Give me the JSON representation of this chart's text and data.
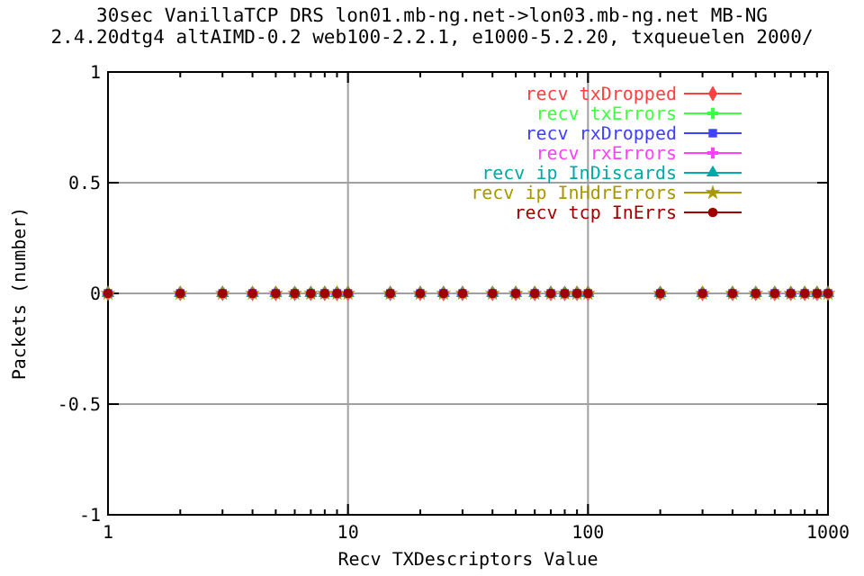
{
  "chart_data": {
    "type": "scatter",
    "title": "30sec VanillaTCP DRS lon01.mb-ng.net->lon03.mb-ng.net MB-NG",
    "subtitle": "2.4.20dtg4 altAIMD-0.2 web100-2.2.1, e1000-5.2.20, txqueuelen 2000/",
    "xlabel": "Recv TXDescriptors Value",
    "ylabel": "Packets (number)",
    "log": "x",
    "grid": true,
    "legend": "top right",
    "xlim": [
      1,
      1000
    ],
    "ylim": [
      -1,
      1
    ],
    "xticks": [
      1,
      {
        "value": 2,
        "label": null
      },
      {
        "value": 3,
        "label": null
      },
      {
        "value": 4,
        "label": null
      },
      {
        "value": 5,
        "label": null
      },
      {
        "value": 6,
        "label": null
      },
      {
        "value": 7,
        "label": null
      },
      {
        "value": 8,
        "label": null
      },
      {
        "value": 9,
        "label": null
      },
      10,
      {
        "value": 20,
        "label": null
      },
      {
        "value": 30,
        "label": null
      },
      {
        "value": 40,
        "label": null
      },
      {
        "value": 50,
        "label": null
      },
      {
        "value": 60,
        "label": null
      },
      {
        "value": 70,
        "label": null
      },
      {
        "value": 80,
        "label": null
      },
      {
        "value": 90,
        "label": null
      },
      100,
      {
        "value": 200,
        "label": null
      },
      {
        "value": 300,
        "label": null
      },
      {
        "value": 400,
        "label": null
      },
      {
        "value": 500,
        "label": null
      },
      {
        "value": 600,
        "label": null
      },
      {
        "value": 700,
        "label": null
      },
      {
        "value": 800,
        "label": null
      },
      {
        "value": 900,
        "label": null
      },
      1000
    ],
    "yticks": [
      -1,
      -0.5,
      0,
      0.5,
      1
    ],
    "x": [
      1,
      2,
      3,
      4,
      5,
      6,
      7,
      8,
      9,
      10,
      15,
      20,
      25,
      30,
      40,
      50,
      60,
      70,
      80,
      90,
      100,
      200,
      300,
      400,
      500,
      600,
      700,
      800,
      900,
      1000
    ],
    "series": [
      {
        "name": "recv txDropped",
        "color": "#ff4040",
        "marker": "diamond",
        "values": [
          0,
          0,
          0,
          0,
          0,
          0,
          0,
          0,
          0,
          0,
          0,
          0,
          0,
          0,
          0,
          0,
          0,
          0,
          0,
          0,
          0,
          0,
          0,
          0,
          0,
          0,
          0,
          0,
          0,
          0
        ]
      },
      {
        "name": "recv txErrors",
        "color": "#40ff40",
        "marker": "cross",
        "values": [
          0,
          0,
          0,
          0,
          0,
          0,
          0,
          0,
          0,
          0,
          0,
          0,
          0,
          0,
          0,
          0,
          0,
          0,
          0,
          0,
          0,
          0,
          0,
          0,
          0,
          0,
          0,
          0,
          0,
          0
        ]
      },
      {
        "name": "recv rxDropped",
        "color": "#4040ff",
        "marker": "square",
        "values": [
          0,
          0,
          0,
          0,
          0,
          0,
          0,
          0,
          0,
          0,
          0,
          0,
          0,
          0,
          0,
          0,
          0,
          0,
          0,
          0,
          0,
          0,
          0,
          0,
          0,
          0,
          0,
          0,
          0,
          0
        ]
      },
      {
        "name": "recv rxErrors",
        "color": "#ff40ff",
        "marker": "cross",
        "values": [
          0,
          0,
          0,
          0,
          0,
          0,
          0,
          0,
          0,
          0,
          0,
          0,
          0,
          0,
          0,
          0,
          0,
          0,
          0,
          0,
          0,
          0,
          0,
          0,
          0,
          0,
          0,
          0,
          0,
          0
        ]
      },
      {
        "name": "recv ip InDiscards",
        "color": "#00a8a8",
        "marker": "triangle",
        "values": [
          0,
          0,
          0,
          0,
          0,
          0,
          0,
          0,
          0,
          0,
          0,
          0,
          0,
          0,
          0,
          0,
          0,
          0,
          0,
          0,
          0,
          0,
          0,
          0,
          0,
          0,
          0,
          0,
          0,
          0
        ]
      },
      {
        "name": "recv ip InHdrErrors",
        "color": "#a89800",
        "marker": "star",
        "values": [
          0,
          0,
          0,
          0,
          0,
          0,
          0,
          0,
          0,
          0,
          0,
          0,
          0,
          0,
          0,
          0,
          0,
          0,
          0,
          0,
          0,
          0,
          0,
          0,
          0,
          0,
          0,
          0,
          0,
          0
        ]
      },
      {
        "name": "recv tcp InErrs",
        "color": "#a00000",
        "marker": "circle",
        "values": [
          0,
          0,
          0,
          0,
          0,
          0,
          0,
          0,
          0,
          0,
          0,
          0,
          0,
          0,
          0,
          0,
          0,
          0,
          0,
          0,
          0,
          0,
          0,
          0,
          0,
          0,
          0,
          0,
          0,
          0
        ]
      }
    ]
  }
}
